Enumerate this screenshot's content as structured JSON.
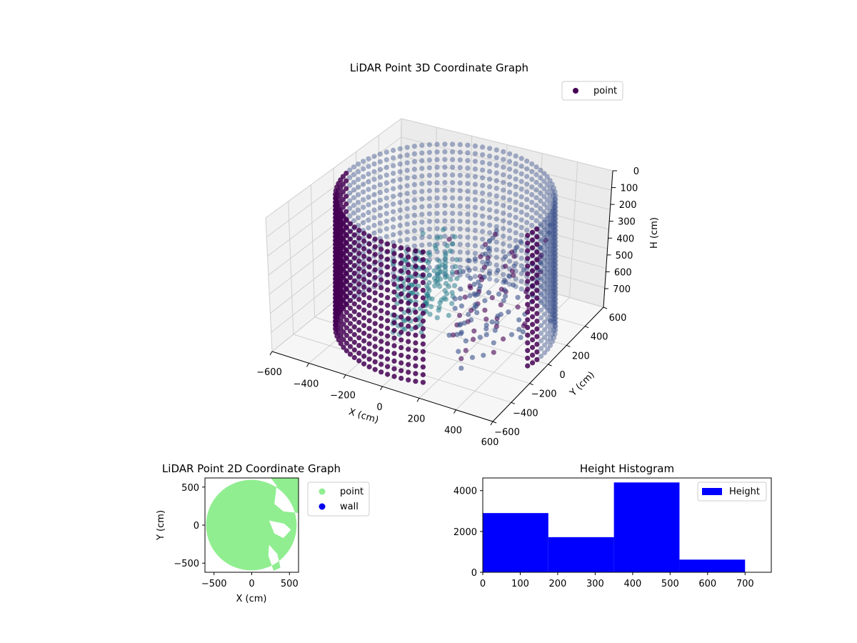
{
  "colors": {
    "point_dark": "#440154",
    "point_mid": "#3b528b",
    "point_teal": "#2c7f8e",
    "point_2d": "#90ee90",
    "wall_2d": "#0000ee",
    "hist_bar": "#0000ff",
    "pane": "#f2f2f2",
    "grid": "#d0d0d0"
  },
  "chart_data": [
    {
      "type": "scatter",
      "title": "LiDAR Point 3D Coordinate Graph",
      "xlabel": "X (cm)",
      "ylabel": "Y (cm)",
      "zlabel": "H (cm)",
      "xlim": [
        -600,
        600
      ],
      "ylim": [
        -600,
        600
      ],
      "zlim": [
        0,
        700
      ],
      "z_inverted": true,
      "x_ticks": [
        "−600",
        "−400",
        "−200",
        "0",
        "200",
        "400",
        "600"
      ],
      "y_ticks": [
        "600",
        "400",
        "200",
        "0",
        "−200",
        "−400",
        "−600"
      ],
      "z_ticks": [
        "0",
        "100",
        "200",
        "300",
        "400",
        "500",
        "600",
        "700"
      ],
      "series": [
        {
          "name": "point"
        }
      ],
      "legend": "top-right",
      "grid": true
    },
    {
      "type": "scatter",
      "title": "LiDAR Point 2D Coordinate Graph",
      "xlabel": "X (cm)",
      "ylabel": "Y (cm)",
      "xlim": [
        -620,
        620
      ],
      "ylim": [
        -620,
        620
      ],
      "x_ticks": [
        "−500",
        "0",
        "500"
      ],
      "y_ticks": [
        "500",
        "0",
        "−500"
      ],
      "series": [
        {
          "name": "point"
        },
        {
          "name": "wall"
        }
      ],
      "legend": "outside-right"
    },
    {
      "type": "bar",
      "title": "Height Histogram",
      "bins": [
        [
          0,
          175
        ],
        [
          175,
          350
        ],
        [
          350,
          525
        ],
        [
          525,
          700
        ]
      ],
      "values": [
        2900,
        1720,
        4400,
        620
      ],
      "xlim": [
        0,
        770
      ],
      "ylim": [
        0,
        4620
      ],
      "x_ticks": [
        "0",
        "100",
        "200",
        "300",
        "400",
        "500",
        "600",
        "700"
      ],
      "y_ticks": [
        "0",
        "2000",
        "4000"
      ],
      "series": [
        {
          "name": "Height"
        }
      ],
      "legend": "top-right"
    }
  ]
}
